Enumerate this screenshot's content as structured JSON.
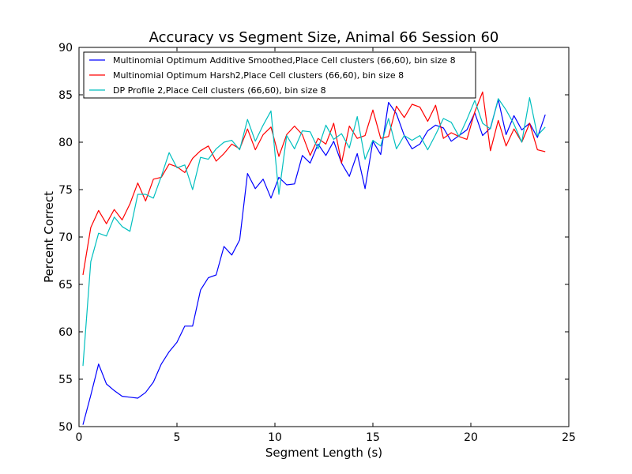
{
  "chart_data": {
    "type": "line",
    "title": "Accuracy vs Segment Size, Animal 66 Session 60",
    "xlabel": "Segment Length (s)",
    "ylabel": "Percent Correct",
    "xlim": [
      0,
      25
    ],
    "ylim": [
      50,
      90
    ],
    "xticks": [
      0,
      5,
      10,
      15,
      20,
      25
    ],
    "yticks": [
      50,
      55,
      60,
      65,
      70,
      75,
      80,
      85,
      90
    ],
    "grid": false,
    "legend_position": "top-left",
    "series": [
      {
        "name": "Multinomial Optimum Additive Smoothed,Place Cell clusters (66,60), bin size 8",
        "color": "#0000ff",
        "x": [
          0.2,
          0.6,
          1.0,
          1.4,
          1.8,
          2.2,
          2.6,
          3.0,
          3.4,
          3.8,
          4.2,
          4.6,
          5.0,
          5.4,
          5.8,
          6.2,
          6.6,
          7.0,
          7.4,
          7.8,
          8.2,
          8.6,
          9.0,
          9.4,
          9.8,
          10.2,
          10.6,
          11.0,
          11.4,
          11.8,
          12.2,
          12.6,
          13.0,
          13.4,
          13.8,
          14.2,
          14.6,
          15.0,
          15.4,
          15.8,
          16.2,
          16.6,
          17.0,
          17.4,
          17.8,
          18.2,
          18.6,
          19.0,
          19.4,
          19.8,
          20.2,
          20.6,
          21.0,
          21.4,
          21.8,
          22.2,
          22.6,
          23.0,
          23.4,
          23.8
        ],
        "values": [
          50.2,
          53.3,
          56.6,
          54.5,
          53.8,
          53.2,
          53.1,
          53.0,
          53.6,
          54.7,
          56.6,
          57.9,
          58.9,
          60.6,
          60.6,
          64.4,
          65.7,
          66.0,
          69.0,
          68.1,
          69.7,
          76.7,
          75.1,
          76.1,
          74.1,
          76.3,
          75.5,
          75.6,
          78.6,
          77.8,
          79.8,
          78.6,
          80.1,
          77.8,
          76.4,
          78.8,
          75.1,
          80.1,
          78.7,
          84.2,
          83.0,
          80.7,
          79.3,
          79.8,
          81.2,
          81.8,
          81.5,
          80.1,
          80.7,
          81.3,
          83.1,
          80.7,
          81.5,
          84.5,
          80.8,
          82.8,
          81.3,
          82.0,
          80.5,
          82.9
        ]
      },
      {
        "name": "Multinomial Optimum Harsh2,Place Cell clusters (66,60), bin size 8",
        "color": "#ff0000",
        "x": [
          0.2,
          0.6,
          1.0,
          1.4,
          1.8,
          2.2,
          2.6,
          3.0,
          3.4,
          3.8,
          4.2,
          4.6,
          5.0,
          5.4,
          5.8,
          6.2,
          6.6,
          7.0,
          7.4,
          7.8,
          8.2,
          8.6,
          9.0,
          9.4,
          9.8,
          10.2,
          10.6,
          11.0,
          11.4,
          11.8,
          12.2,
          12.6,
          13.0,
          13.4,
          13.8,
          14.2,
          14.6,
          15.0,
          15.4,
          15.8,
          16.2,
          16.6,
          17.0,
          17.4,
          17.8,
          18.2,
          18.6,
          19.0,
          19.4,
          19.8,
          20.2,
          20.6,
          21.0,
          21.4,
          21.8,
          22.2,
          22.6,
          23.0,
          23.4,
          23.8
        ],
        "values": [
          66.0,
          71.0,
          72.8,
          71.4,
          72.9,
          71.8,
          73.5,
          75.7,
          73.8,
          76.1,
          76.3,
          77.7,
          77.4,
          76.8,
          78.3,
          79.1,
          79.6,
          78.0,
          78.8,
          79.8,
          79.3,
          81.4,
          79.2,
          80.8,
          81.6,
          78.5,
          80.8,
          81.7,
          80.8,
          78.6,
          80.4,
          79.8,
          82.0,
          77.8,
          81.7,
          80.4,
          80.7,
          83.4,
          80.4,
          80.6,
          83.8,
          82.6,
          84.0,
          83.7,
          82.2,
          83.9,
          80.4,
          81.0,
          80.6,
          80.3,
          83.2,
          85.3,
          79.1,
          82.3,
          79.6,
          81.4,
          80.0,
          82.0,
          79.2,
          79.0
        ]
      },
      {
        "name": "DP Profile 2,Place Cell clusters (66,60), bin size 8",
        "color": "#00bfbf",
        "x": [
          0.2,
          0.6,
          1.0,
          1.4,
          1.8,
          2.2,
          2.6,
          3.0,
          3.4,
          3.8,
          4.2,
          4.6,
          5.0,
          5.4,
          5.8,
          6.2,
          6.6,
          7.0,
          7.4,
          7.8,
          8.2,
          8.6,
          9.0,
          9.4,
          9.8,
          10.2,
          10.6,
          11.0,
          11.4,
          11.8,
          12.2,
          12.6,
          13.0,
          13.4,
          13.8,
          14.2,
          14.6,
          15.0,
          15.4,
          15.8,
          16.2,
          16.6,
          17.0,
          17.4,
          17.8,
          18.2,
          18.6,
          19.0,
          19.4,
          19.8,
          20.2,
          20.6,
          21.0,
          21.4,
          21.8,
          22.2,
          22.6,
          23.0,
          23.4,
          23.8
        ],
        "values": [
          56.4,
          67.4,
          70.4,
          70.1,
          72.1,
          71.1,
          70.6,
          74.5,
          74.5,
          74.1,
          76.4,
          78.9,
          77.3,
          77.6,
          75.0,
          78.4,
          78.2,
          79.3,
          80.0,
          80.2,
          79.2,
          82.4,
          80.1,
          81.8,
          83.3,
          74.5,
          80.7,
          79.3,
          81.2,
          81.1,
          79.3,
          81.8,
          80.3,
          80.9,
          79.4,
          82.7,
          78.2,
          80.2,
          79.6,
          82.5,
          79.3,
          80.7,
          80.2,
          80.7,
          79.2,
          80.8,
          82.5,
          82.1,
          80.6,
          82.4,
          84.4,
          82.0,
          81.4,
          84.6,
          83.4,
          81.9,
          80.0,
          84.7,
          80.7,
          81.6
        ]
      }
    ]
  }
}
